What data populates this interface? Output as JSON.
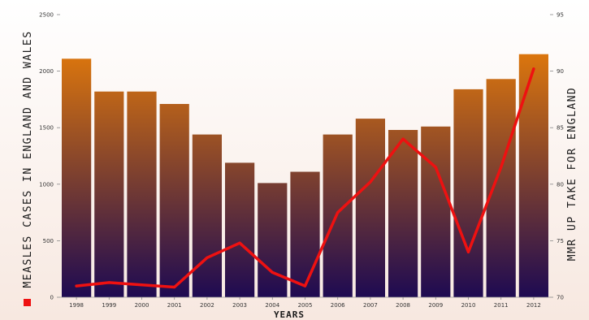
{
  "chart_data": {
    "type": "bar",
    "title": "",
    "xlabel": "YEARS",
    "ylabel": "MEASLES CASES IN ENGLAND AND WALES",
    "y2label": "MMR UP TAKE FOR ENGLAND",
    "categories": [
      "1998",
      "1999",
      "2000",
      "2001",
      "2002",
      "2003",
      "2004",
      "2005",
      "2006",
      "2007",
      "2008",
      "2009",
      "2010",
      "2011",
      "2012"
    ],
    "ylim": [
      0,
      2500
    ],
    "y_ticks": [
      "0",
      "500",
      "1000",
      "1500",
      "2000",
      "2500"
    ],
    "y2lim": [
      70,
      95
    ],
    "y2_ticks": [
      "70",
      "75",
      "80",
      "85",
      "90",
      "95"
    ],
    "series": [
      {
        "name": "MEASLES CASES IN ENGLAND AND WALES",
        "type": "bar",
        "axis": "left",
        "values": [
          2110,
          1820,
          1820,
          1710,
          1440,
          1190,
          1010,
          1110,
          1440,
          1580,
          1480,
          1510,
          1840,
          1930,
          2150
        ]
      },
      {
        "name": "MMR UP TAKE FOR ENGLAND",
        "type": "line",
        "axis": "right",
        "values": [
          71.0,
          71.3,
          71.1,
          70.9,
          73.5,
          74.8,
          72.2,
          71.0,
          77.5,
          80.2,
          84.0,
          81.5,
          74.0,
          81.5,
          90.2
        ]
      }
    ],
    "colors": {
      "bar_top": "#ff8a00",
      "bar_bottom": "#1e0a52",
      "line": "#ee1111",
      "legend_marker": "#ee1111",
      "background_top": "#ffffff",
      "background_bottom": "#f7e8e0"
    },
    "legend": "bottom-left",
    "grid": false
  }
}
